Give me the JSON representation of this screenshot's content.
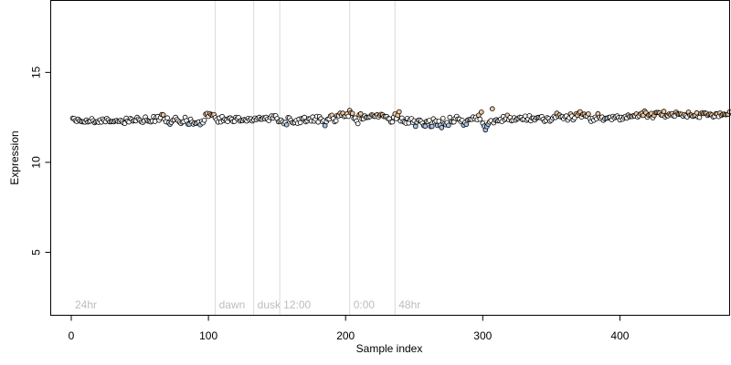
{
  "chart_data": {
    "type": "scatter",
    "title": "",
    "xlabel": "Sample index",
    "ylabel": "Expression",
    "xlim": [
      -15,
      480
    ],
    "ylim": [
      1.5,
      19.0
    ],
    "x_ticks": [
      0,
      100,
      200,
      300,
      400
    ],
    "y_ticks": [
      5,
      10,
      15
    ],
    "grid": false,
    "legend": "none",
    "colors": {
      "point_edge": "#000000",
      "point_light": "#ffffff",
      "point_warm": "#f0c8a0",
      "point_cool": "#a8c4e8",
      "trend": "#d9a07a",
      "annotation_line": "#d9d9d9",
      "annotation_text": "#bdbdbd"
    },
    "annotations": [
      {
        "label": "24hr",
        "x": 0
      },
      {
        "label": "dawn",
        "x": 105
      },
      {
        "label": "dusk",
        "x": 133
      },
      {
        "label": "12:00",
        "x": 152
      },
      {
        "label": "0:00",
        "x": 203
      },
      {
        "label": "48hr",
        "x": 236
      }
    ],
    "series": [
      {
        "x_start": 1,
        "x_step": 1,
        "values": [
          12.45,
          12.44,
          12.32,
          12.28,
          12.4,
          12.32,
          12.28,
          12.26,
          12.26,
          12.24,
          12.35,
          12.25,
          12.27,
          12.3,
          12.43,
          12.31,
          12.21,
          12.25,
          12.27,
          12.23,
          12.36,
          12.24,
          12.41,
          12.33,
          12.26,
          12.44,
          12.36,
          12.26,
          12.26,
          12.28,
          12.26,
          12.3,
          12.33,
          12.28,
          12.28,
          12.34,
          12.28,
          12.2,
          12.17,
          12.45,
          12.3,
          12.25,
          12.44,
          12.39,
          12.3,
          12.33,
          12.31,
          12.5,
          12.41,
          12.35,
          12.26,
          12.22,
          12.3,
          12.52,
          12.35,
          12.3,
          12.28,
          12.25,
          12.3,
          12.55,
          12.28,
          12.51,
          12.55,
          12.34,
          12.48,
          12.66,
          12.64,
          12.4,
          12.26,
          12.47,
          12.2,
          12.12,
          12.23,
          12.34,
          12.37,
          12.5,
          12.38,
          12.31,
          12.23,
          12.16,
          12.24,
          12.27,
          12.5,
          12.32,
          12.13,
          12.12,
          12.4,
          12.23,
          12.13,
          12.2,
          12.17,
          12.21,
          12.25,
          12.09,
          12.28,
          12.2,
          12.34,
          12.68,
          12.72,
          12.56,
          12.71,
          12.64,
          12.61,
          12.66,
          12.48,
          12.37,
          12.24,
          12.47,
          12.25,
          12.55,
          12.32,
          12.4,
          12.35,
          12.27,
          12.45,
          12.47,
          12.39,
          12.27,
          12.28,
          12.5,
          12.43,
          12.49,
          12.3,
          12.34,
          12.32,
          12.38,
          12.35,
          12.3,
          12.44,
          12.36,
          12.42,
          12.3,
          12.36,
          12.46,
          12.38,
          12.45,
          12.5,
          12.4,
          12.4,
          12.47,
          12.43,
          12.5,
          12.39,
          12.32,
          12.49,
          12.58,
          12.46,
          12.59,
          12.59,
          12.43,
          12.26,
          12.29,
          12.35,
          12.25,
          12.15,
          12.22,
          12.09,
          12.49,
          12.47,
          12.34,
          12.22,
          12.19,
          12.22,
          12.33,
          12.17,
          12.4,
          12.21,
          12.44,
          12.44,
          12.5,
          12.26,
          12.31,
          12.42,
          12.41,
          12.3,
          12.52,
          12.29,
          12.4,
          12.56,
          12.24,
          12.54,
          12.42,
          12.27,
          12.32,
          12.04,
          12.27,
          12.4,
          12.41,
          12.58,
          12.62,
          12.43,
          12.26,
          12.31,
          12.61,
          12.59,
          12.73,
          12.62,
          12.73,
          12.55,
          12.58,
          12.69,
          12.56,
          12.89,
          12.75,
          12.72,
          12.44,
          12.47,
          12.3,
          12.15,
          12.65,
          12.7,
          12.41,
          12.42,
          12.58,
          12.49,
          12.5,
          12.51,
          12.55,
          12.64,
          12.62,
          12.56,
          12.56,
          12.65,
          12.52,
          12.61,
          12.67,
          12.64,
          12.55,
          12.55,
          12.55,
          12.43,
          12.42,
          12.24,
          12.25,
          12.5,
          12.69,
          12.43,
          12.62,
          12.81,
          12.3,
          12.46,
          12.27,
          12.23,
          12.18,
          12.44,
          12.19,
          12.37,
          12.43,
          12.22,
          12.31,
          12.0,
          12.24,
          12.34,
          12.35,
          12.29,
          12.18,
          12.04,
          12.01,
          12.28,
          12.26,
          12.33,
          11.99,
          12.0,
          12.42,
          12.25,
          12.3,
          12.05,
          12.28,
          12.07,
          11.93,
          12.44,
          12.14,
          12.09,
          12.21,
          12.06,
          12.5,
          12.27,
          12.24,
          12.25,
          12.45,
          12.56,
          12.41,
          12.4,
          12.27,
          12.34,
          12.07,
          12.21,
          12.11,
          12.35,
          12.38,
          12.39,
          12.39,
          12.52,
          12.41,
          12.51,
          12.37,
          12.62,
          12.4,
          12.79,
          12.17,
          12.02,
          11.8,
          11.99,
          12.12,
          12.25,
          12.32,
          12.98,
          12.2,
          12.34,
          12.37,
          12.31,
          12.33,
          12.4,
          12.27,
          12.55,
          12.37,
          12.43,
          12.62,
          12.37,
          12.49,
          12.31,
          12.34,
          12.48,
          12.35,
          12.42,
          12.44,
          12.51,
          12.49,
          12.38,
          12.4,
          12.57,
          12.34,
          12.41,
          12.59,
          12.31,
          12.46,
          12.46,
          12.36,
          12.46,
          12.49,
          12.5,
          12.49,
          12.55,
          12.39,
          12.28,
          12.33,
          12.48,
          12.43,
          12.29,
          12.35,
          12.46,
          12.56,
          12.49,
          12.73,
          12.57,
          12.63,
          12.52,
          12.54,
          12.42,
          12.54,
          12.58,
          12.35,
          12.47,
          12.69,
          12.57,
          12.36,
          12.47,
          12.69,
          12.62,
          12.75,
          12.81,
          12.52,
          12.67,
          12.68,
          12.58,
          12.58,
          12.69,
          12.43,
          12.28,
          12.44,
          12.34,
          12.51,
          12.42,
          12.7,
          12.5,
          12.44,
          12.52,
          12.34,
          12.43,
          12.45,
          12.46,
          12.5,
          12.51,
          12.37,
          12.56,
          12.47,
          12.54,
          12.58,
          12.48,
          12.36,
          12.5,
          12.4,
          12.5,
          12.56,
          12.46,
          12.63,
          12.54,
          12.56,
          12.55,
          12.6,
          12.58,
          12.69,
          12.52,
          12.59,
          12.69,
          12.73,
          12.61,
          12.85,
          12.76,
          12.51,
          12.63,
          12.66,
          12.72,
          12.48,
          12.61,
          12.76,
          12.77,
          12.77,
          12.75,
          12.64,
          12.62,
          12.83,
          12.53,
          12.61,
          12.59,
          12.69,
          12.65,
          12.71,
          12.59,
          12.58,
          12.79,
          12.7,
          12.67,
          12.69,
          12.67,
          12.57,
          12.66,
          12.59,
          12.53,
          12.79,
          12.62,
          12.63,
          12.56,
          12.59,
          12.63,
          12.75,
          12.52,
          12.5,
          12.71,
          12.76,
          12.71,
          12.75,
          12.72,
          12.61,
          12.67,
          12.68,
          12.63,
          12.52,
          12.56,
          12.7,
          12.69,
          12.55,
          12.74,
          12.61,
          12.67,
          12.68,
          12.65,
          12.66,
          12.67,
          12.81
        ]
      }
    ]
  }
}
